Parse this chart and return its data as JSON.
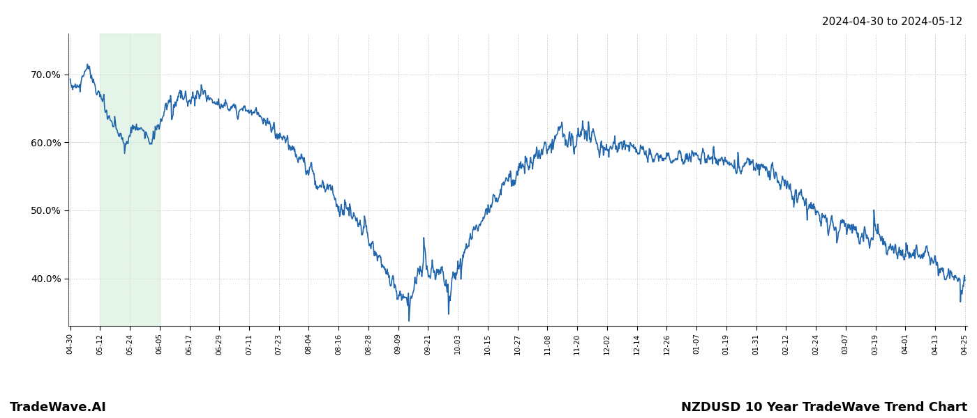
{
  "title_top_right": "2024-04-30 to 2024-05-12",
  "title_bottom_left": "TradeWave.AI",
  "title_bottom_right": "NZDUSD 10 Year TradeWave Trend Chart",
  "line_color": "#2166ac",
  "line_width": 1.2,
  "shade_color": "#d4edda",
  "shade_alpha": 0.6,
  "background_color": "#ffffff",
  "grid_color": "#bbbbbb",
  "grid_style": ":",
  "ylim": [
    33,
    76
  ],
  "yticks": [
    40.0,
    50.0,
    60.0,
    70.0
  ],
  "x_labels": [
    "04-30",
    "05-12",
    "05-24",
    "06-05",
    "06-17",
    "06-29",
    "07-11",
    "07-23",
    "08-04",
    "08-16",
    "08-28",
    "09-09",
    "09-21",
    "10-03",
    "10-15",
    "10-27",
    "11-08",
    "11-20",
    "12-02",
    "12-14",
    "12-26",
    "01-07",
    "01-19",
    "01-31",
    "02-12",
    "02-24",
    "03-07",
    "03-19",
    "04-01",
    "04-13",
    "04-25"
  ]
}
